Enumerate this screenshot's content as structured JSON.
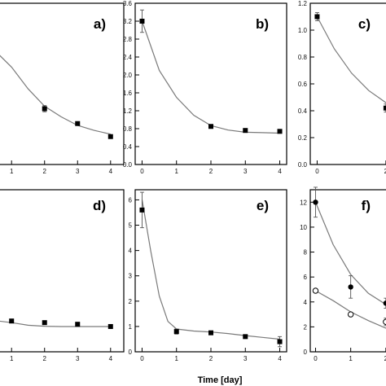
{
  "figure": {
    "xlabel": "Time [day]"
  },
  "chart_data": [
    {
      "panel": "a)",
      "type": "line",
      "x_ticks": [
        "1",
        "2",
        "3",
        "4"
      ],
      "y_ticks": [],
      "points": {
        "x": [
          2,
          3,
          4
        ],
        "y": [
          0.9,
          0.66,
          0.45
        ],
        "err": [
          0.05,
          0,
          0
        ]
      },
      "fit": {
        "x": [
          0.6,
          1,
          1.5,
          2,
          2.5,
          3,
          3.5,
          4
        ],
        "y": [
          1.78,
          1.57,
          1.22,
          0.94,
          0.77,
          0.63,
          0.55,
          0.49
        ]
      },
      "xlim": [
        0.6,
        4.4
      ],
      "ylim": [
        0,
        2.6
      ]
    },
    {
      "panel": "b)",
      "type": "line",
      "x_ticks": [
        "0",
        "1",
        "2",
        "3",
        "4"
      ],
      "y_ticks": [
        "0.0",
        "0.4",
        "0.8",
        "1.2",
        "1.6",
        "2.0",
        "2.4",
        "2.8",
        "3.2",
        "3.6"
      ],
      "points": {
        "x": [
          0,
          2,
          3,
          4
        ],
        "y": [
          3.2,
          0.85,
          0.76,
          0.74
        ],
        "err": [
          0.25,
          0,
          0.04,
          0
        ]
      },
      "fit": {
        "x": [
          0,
          0.5,
          1,
          1.5,
          2,
          2.5,
          3,
          3.5,
          4
        ],
        "y": [
          3.2,
          2.1,
          1.5,
          1.1,
          0.87,
          0.77,
          0.72,
          0.71,
          0.7
        ]
      },
      "xlim": [
        -0.2,
        4.2
      ],
      "ylim": [
        0,
        3.6
      ]
    },
    {
      "panel": "c)",
      "type": "line",
      "x_ticks": [
        "0",
        "2"
      ],
      "y_ticks": [
        "0.0",
        "0.2",
        "0.4",
        "0.6",
        "0.8",
        "1.0",
        "1.2"
      ],
      "points": {
        "x": [
          0,
          2
        ],
        "y": [
          1.1,
          0.42
        ],
        "err": [
          0.03,
          0.03
        ]
      },
      "fit": {
        "x": [
          0,
          0.5,
          1,
          1.5,
          2,
          2.4
        ],
        "y": [
          1.1,
          0.86,
          0.68,
          0.55,
          0.46,
          0.4
        ]
      },
      "xlim": [
        -0.2,
        2.05
      ],
      "ylim": [
        0,
        1.2
      ]
    },
    {
      "panel": "d)",
      "type": "line",
      "x_ticks": [
        "1",
        "2",
        "3",
        "4"
      ],
      "y_ticks": [],
      "points": {
        "x": [
          1,
          2,
          3,
          4
        ],
        "y": [
          0.95,
          0.9,
          0.85,
          0.78
        ],
        "err": [
          0.05,
          0,
          0,
          0
        ]
      },
      "fit": {
        "x": [
          0.6,
          1,
          1.5,
          2,
          2.5,
          3,
          3.5,
          4
        ],
        "y": [
          0.95,
          0.9,
          0.82,
          0.79,
          0.78,
          0.78,
          0.78,
          0.78
        ]
      },
      "xlim": [
        0.6,
        4.4
      ],
      "ylim": [
        0,
        5
      ]
    },
    {
      "panel": "e)",
      "type": "line",
      "x_ticks": [
        "0",
        "1",
        "2",
        "3",
        "4"
      ],
      "y_ticks": [
        "0",
        "1",
        "2",
        "3",
        "4",
        "5",
        "6"
      ],
      "points": {
        "x": [
          0,
          1,
          2,
          3,
          4
        ],
        "y": [
          5.6,
          0.8,
          0.75,
          0.6,
          0.4
        ],
        "err": [
          0.7,
          0.1,
          0,
          0,
          0.2
        ]
      },
      "fit": {
        "x": [
          0,
          0.25,
          0.5,
          0.75,
          1,
          1.5,
          2,
          2.5,
          3,
          3.5,
          4
        ],
        "y": [
          6.0,
          4.0,
          2.2,
          1.2,
          0.9,
          0.82,
          0.78,
          0.72,
          0.64,
          0.57,
          0.5
        ]
      },
      "xlim": [
        -0.2,
        4.2
      ],
      "ylim": [
        0,
        6.4
      ]
    },
    {
      "panel": "f)",
      "type": "line",
      "x_ticks": [
        "0",
        "1",
        "2"
      ],
      "y_ticks": [
        "0",
        "2",
        "4",
        "6",
        "8",
        "10",
        "12"
      ],
      "series": [
        {
          "marker": "filled-circle",
          "points": {
            "x": [
              0,
              1,
              2
            ],
            "y": [
              12,
              5.2,
              3.9
            ],
            "err": [
              1.2,
              0.9,
              0.4
            ]
          },
          "fit": {
            "x": [
              0,
              0.5,
              1,
              1.5,
              2,
              2.2
            ],
            "y": [
              12,
              8.6,
              6.2,
              4.7,
              3.8,
              3.5
            ]
          }
        },
        {
          "marker": "open-circle",
          "points": {
            "x": [
              0,
              1,
              2
            ],
            "y": [
              4.9,
              3.0,
              2.4
            ],
            "err": [
              0,
              0,
              0.3
            ]
          },
          "fit": {
            "x": [
              0,
              0.5,
              1,
              1.5,
              2,
              2.2
            ],
            "y": [
              4.9,
              4.1,
              3.2,
              2.5,
              1.9,
              1.7
            ]
          }
        }
      ],
      "xlim": [
        -0.15,
        2.05
      ],
      "ylim": [
        0,
        13
      ]
    }
  ]
}
